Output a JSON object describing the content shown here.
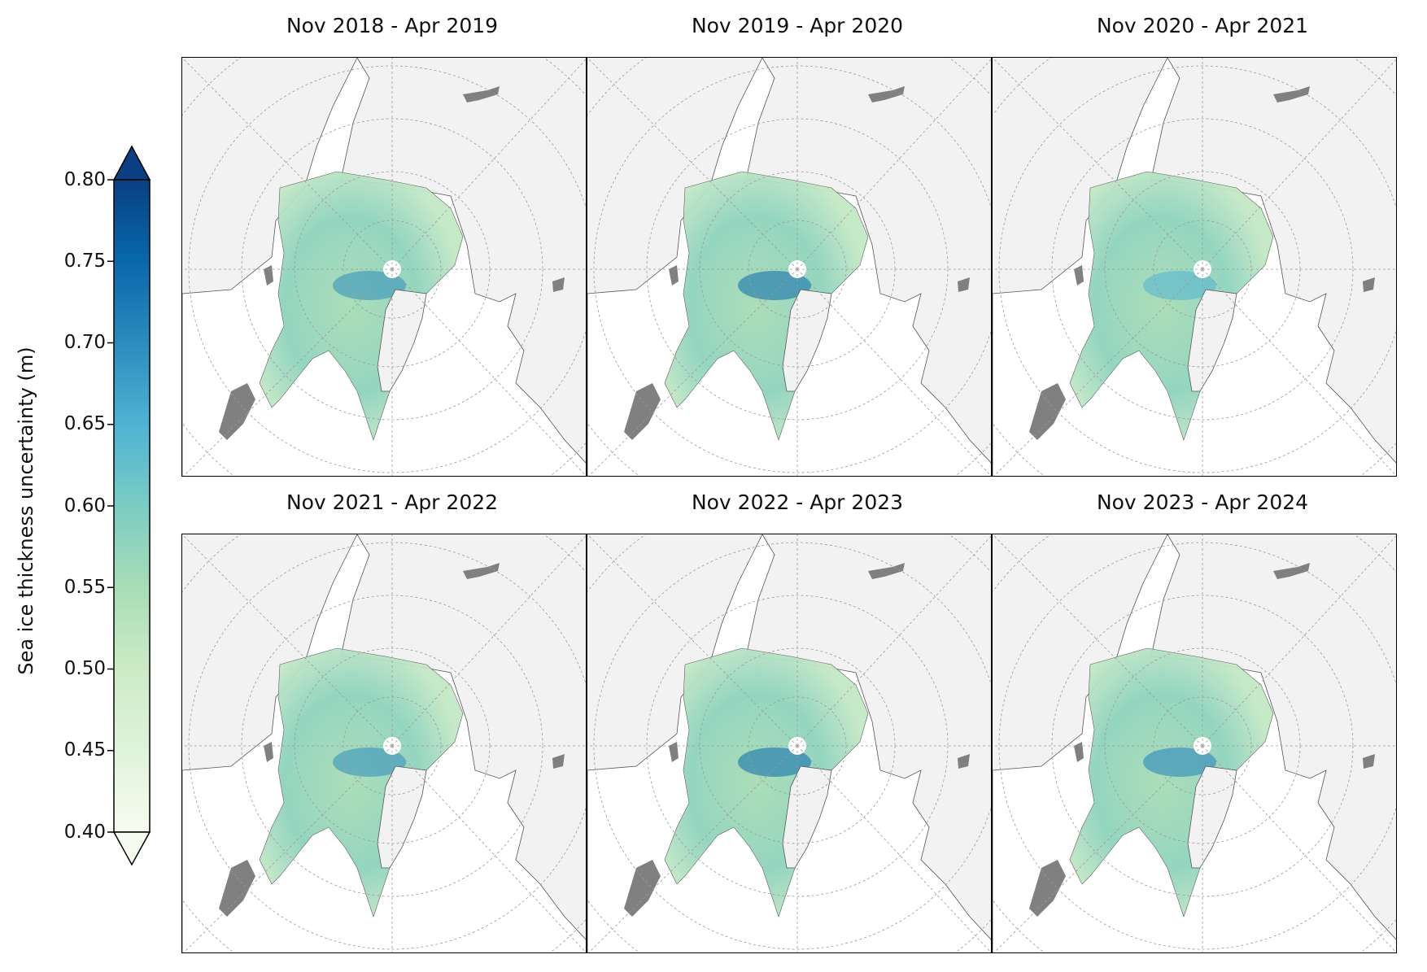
{
  "colorbar": {
    "label": "Sea ice thickness uncertainty (m)",
    "ticks": [
      "0.80",
      "0.75",
      "0.70",
      "0.65",
      "0.60",
      "0.55",
      "0.50",
      "0.45",
      "0.40"
    ],
    "range": [
      0.4,
      0.8
    ],
    "extend": "both",
    "colors": [
      "#f7fcf0",
      "#e0f3db",
      "#ccebc5",
      "#a8ddb5",
      "#7bccc4",
      "#4eb3d3",
      "#2b8cbe",
      "#0868ac",
      "#084081"
    ]
  },
  "panels": [
    {
      "title": "Nov 2018 - Apr 2019"
    },
    {
      "title": "Nov 2019 - Apr 2020"
    },
    {
      "title": "Nov 2020 - Apr 2021"
    },
    {
      "title": "Nov 2021 - Apr 2022"
    },
    {
      "title": "Nov 2022 - Apr 2023"
    },
    {
      "title": "Nov 2023 - Apr 2024"
    }
  ],
  "map_colors": {
    "land": "#f2f2f2",
    "ocean": "#ffffff",
    "lakes": "#808080",
    "coastline": "#555555",
    "grid": "#999999"
  }
}
